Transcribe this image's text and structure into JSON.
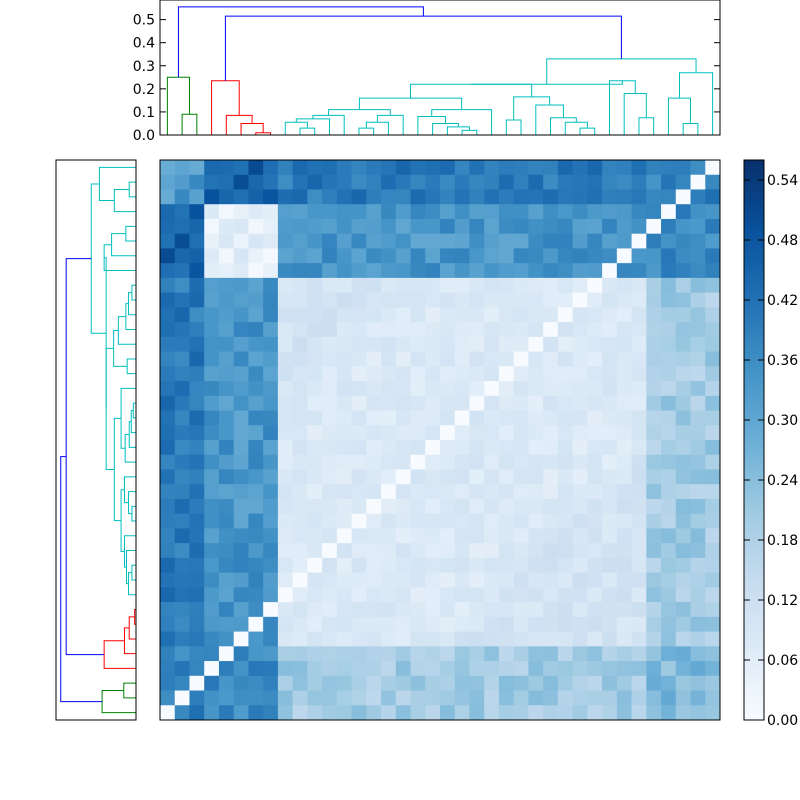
{
  "chart_data": {
    "type": "heatmap",
    "title": "",
    "n": 38,
    "colormap": "Blues",
    "value_range": [
      0,
      0.56
    ],
    "colorbar_ticks": [
      "0.00",
      "0.06",
      "0.12",
      "0.18",
      "0.24",
      "0.30",
      "0.36",
      "0.42",
      "0.48",
      "0.54"
    ],
    "grid": false,
    "dendrogram_top": {
      "yticks": [
        "0.0",
        "0.1",
        "0.2",
        "0.3",
        "0.4",
        "0.5"
      ],
      "ylim": [
        0,
        0.585
      ],
      "colors": {
        "green": "#008000",
        "red": "#ff0000",
        "cyan": "#00bfbf",
        "blue": "#0000ff"
      },
      "root_height": 0.555,
      "left_cluster_heights": [
        0.25,
        0.09
      ],
      "mid_cluster_heights": [
        0.235,
        0.085,
        0.05,
        0.01
      ],
      "right_cluster_height": 0.33,
      "right_top_join_height": 0.515
    },
    "blocks": [
      {
        "name": "green",
        "rows": [
          0,
          2
        ]
      },
      {
        "name": "red",
        "rows": [
          3,
          7
        ]
      },
      {
        "name": "cyan-main",
        "rows": [
          8,
          32
        ]
      },
      {
        "name": "cyan-tail",
        "rows": [
          33,
          37
        ]
      }
    ]
  }
}
